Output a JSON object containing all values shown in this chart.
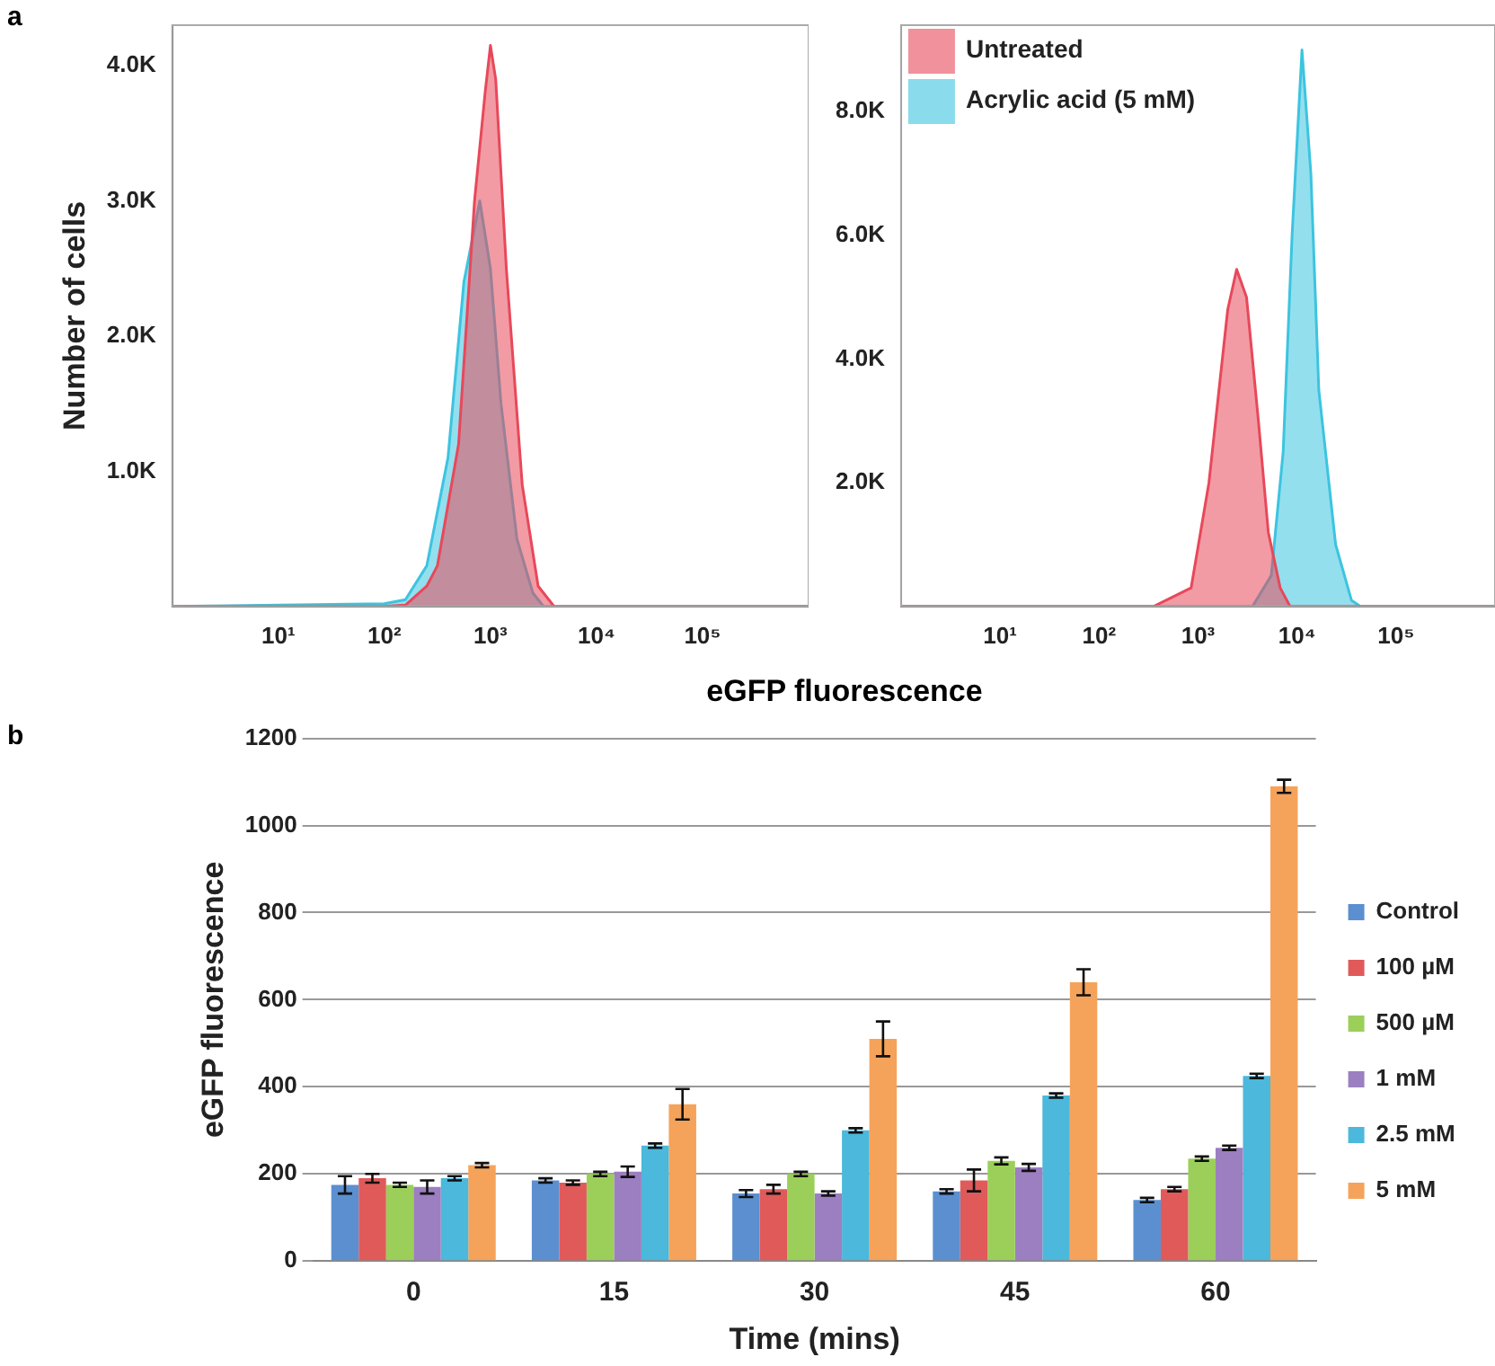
{
  "chart_data": [
    {
      "type": "area",
      "annotations": [
        "a"
      ],
      "xlabel": "eGFP fluorescence",
      "ylabel": "Number of cells",
      "log": "x",
      "xlim": [
        1,
        1000000
      ],
      "ylim": [
        0,
        4300
      ],
      "xticks": [
        {
          "value": 10,
          "label": "10¹"
        },
        {
          "value": 100,
          "label": "10²"
        },
        {
          "value": 1000,
          "label": "10³"
        },
        {
          "value": 10000,
          "label": "10⁴"
        },
        {
          "value": 100000,
          "label": "10⁵"
        }
      ],
      "yticks": [
        {
          "value": 1000,
          "label": "1.0K"
        },
        {
          "value": 2000,
          "label": "2.0K"
        },
        {
          "value": 3000,
          "label": "3.0K"
        },
        {
          "value": 4000,
          "label": "4.0K"
        }
      ],
      "series": [
        {
          "color": "#e8485a",
          "x": [
            1,
            100,
            158,
            251,
            316,
            501,
            708,
            891,
            1000,
            1122,
            1413,
            1995,
            2818,
            3981,
            1000000
          ],
          "values": [
            0,
            0,
            10,
            150,
            300,
            1200,
            3000,
            3800,
            4150,
            3900,
            2500,
            900,
            150,
            0,
            0
          ]
        },
        {
          "color": "#3cc4e0",
          "x": [
            1,
            100,
            158,
            251,
            398,
            562,
            794,
            1000,
            1259,
            1778,
            2512,
            3162,
            1000000
          ],
          "values": [
            0,
            20,
            50,
            300,
            1100,
            2400,
            3000,
            2500,
            1500,
            500,
            100,
            0,
            0
          ]
        }
      ]
    },
    {
      "type": "area",
      "log": "x",
      "legend": "top left",
      "xlim": [
        1,
        1000000
      ],
      "ylim": [
        0,
        9400
      ],
      "xticks": [
        {
          "value": 10,
          "label": "10¹"
        },
        {
          "value": 100,
          "label": "10²"
        },
        {
          "value": 1000,
          "label": "10³"
        },
        {
          "value": 10000,
          "label": "10⁴"
        },
        {
          "value": 100000,
          "label": "10⁵"
        }
      ],
      "yticks": [
        {
          "value": 2000,
          "label": "2.0K"
        },
        {
          "value": 4000,
          "label": "4.0K"
        },
        {
          "value": 6000,
          "label": "6.0K"
        },
        {
          "value": 8000,
          "label": "8.0K"
        }
      ],
      "series": [
        {
          "name": "Untreated",
          "color": "#e8485a",
          "x": [
            1,
            355,
            851,
            1288,
            1995,
            2455,
            3090,
            4074,
            5129,
            6761,
            8511,
            1000000
          ],
          "values": [
            0,
            0,
            300,
            2000,
            4800,
            5450,
            5000,
            3000,
            1200,
            300,
            0,
            0
          ]
        },
        {
          "name": "Acrylic acid (5 mM)",
          "color": "#3cc4e0",
          "x": [
            1,
            3548,
            5495,
            7244,
            8913,
            11220,
            13800,
            16600,
            24550,
            35480,
            43650,
            1000000
          ],
          "values": [
            0,
            0,
            500,
            2500,
            6000,
            9000,
            7000,
            3500,
            1000,
            100,
            0,
            0
          ]
        }
      ]
    },
    {
      "type": "bar",
      "annotations": [
        "b"
      ],
      "xlabel": "Time (mins)",
      "ylabel": "eGFP fluorescence",
      "categories": [
        "0",
        "15",
        "30",
        "45",
        "60"
      ],
      "ylim": [
        0,
        1200
      ],
      "yticks": [
        0,
        200,
        400,
        600,
        800,
        1000,
        1200
      ],
      "grid": "y",
      "legend": "right",
      "series": [
        {
          "name": "Control",
          "color": "#5b8fd0",
          "values": [
            175,
            185,
            155,
            160,
            140
          ],
          "errors": [
            20,
            5,
            8,
            5,
            5
          ]
        },
        {
          "name": "100 µM",
          "color": "#e05a5a",
          "values": [
            190,
            180,
            165,
            185,
            165
          ],
          "errors": [
            10,
            5,
            10,
            25,
            5
          ]
        },
        {
          "name": "500 µM",
          "color": "#9bcf5a",
          "values": [
            175,
            200,
            200,
            230,
            235
          ],
          "errors": [
            5,
            5,
            5,
            8,
            5
          ]
        },
        {
          "name": "1 mM",
          "color": "#9c7fc0",
          "values": [
            170,
            205,
            155,
            215,
            260
          ],
          "errors": [
            15,
            12,
            5,
            8,
            5
          ]
        },
        {
          "name": "2.5 mM",
          "color": "#4bb8dc",
          "values": [
            190,
            265,
            300,
            380,
            425
          ],
          "errors": [
            5,
            5,
            5,
            5,
            5
          ]
        },
        {
          "name": "5 mM",
          "color": "#f5a35a",
          "values": [
            220,
            360,
            510,
            640,
            1090
          ],
          "errors": [
            5,
            35,
            40,
            30,
            15
          ]
        }
      ]
    }
  ]
}
